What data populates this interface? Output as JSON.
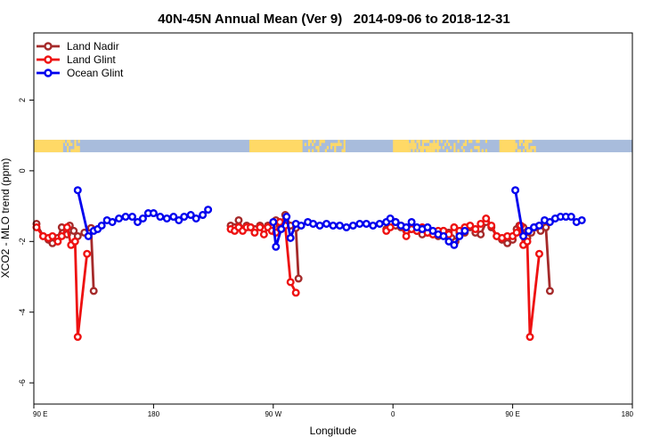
{
  "chart_data": {
    "type": "line",
    "title": "40N-45N Annual Mean (Ver 9)   2014-09-06 to 2018-12-31",
    "xlabel": "Longitude",
    "ylabel": "XCO2 - MLO trend (ppm)",
    "xlim": [
      90,
      540
    ],
    "ylim": [
      -6.6,
      3.9
    ],
    "yticks": [
      2,
      0,
      -2,
      -4,
      -6
    ],
    "ytick_labels": [
      "2",
      "0",
      "-2",
      "-4",
      "-6"
    ],
    "xticks": [
      90,
      180,
      270,
      360,
      450,
      540
    ],
    "xtick_labels": [
      "90 E",
      "180",
      "90 W",
      "0",
      "90 E",
      "180"
    ],
    "legend_position": "top-left",
    "land_ocean_bar": {
      "y_center": 0.7,
      "land_color": "#FFD966",
      "ocean_color": "#A8BCDC"
    },
    "series": [
      {
        "name": "Land Nadir",
        "color": "#A52A2A",
        "segments": [
          [
            [
              92,
              -1.5
            ],
            [
              97,
              -1.85
            ],
            [
              101,
              -1.95
            ],
            [
              104,
              -2.05
            ],
            [
              108,
              -1.9
            ],
            [
              111,
              -1.6
            ],
            [
              115,
              -1.8
            ],
            [
              117,
              -1.55
            ],
            [
              120,
              -1.7
            ],
            [
              123,
              -1.85
            ],
            [
              128,
              -1.75
            ],
            [
              133,
              -1.62
            ],
            [
              135,
              -3.4
            ]
          ],
          [
            [
              238,
              -1.55
            ],
            [
              241,
              -1.6
            ],
            [
              244,
              -1.4
            ],
            [
              247,
              -1.65
            ],
            [
              250,
              -1.55
            ],
            [
              253,
              -1.6
            ],
            [
              256,
              -1.65
            ],
            [
              260,
              -1.55
            ],
            [
              263,
              -1.65
            ],
            [
              266,
              -1.55
            ],
            [
              269,
              -1.6
            ],
            [
              272,
              -1.4
            ],
            [
              275,
              -1.55
            ],
            [
              279,
              -1.25
            ],
            [
              283,
              -1.55
            ],
            [
              287,
              -1.62
            ],
            [
              289,
              -3.05
            ]
          ],
          [
            [
              355,
              -1.65
            ],
            [
              358,
              -1.45
            ],
            [
              362,
              -1.55
            ],
            [
              366,
              -1.6
            ],
            [
              370,
              -1.7
            ],
            [
              374,
              -1.65
            ],
            [
              378,
              -1.7
            ],
            [
              382,
              -1.8
            ],
            [
              386,
              -1.75
            ],
            [
              390,
              -1.8
            ],
            [
              394,
              -1.85
            ],
            [
              398,
              -1.7
            ],
            [
              402,
              -1.75
            ],
            [
              404,
              -1.9
            ],
            [
              407,
              -2.0
            ],
            [
              410,
              -1.75
            ],
            [
              414,
              -1.75
            ],
            [
              418,
              -1.6
            ],
            [
              422,
              -1.75
            ],
            [
              426,
              -1.8
            ],
            [
              430,
              -1.45
            ],
            [
              434,
              -1.6
            ],
            [
              438,
              -1.85
            ],
            [
              442,
              -1.95
            ],
            [
              446,
              -2.05
            ],
            [
              450,
              -1.95
            ],
            [
              453,
              -1.65
            ],
            [
              455,
              -1.55
            ],
            [
              458,
              -1.6
            ],
            [
              461,
              -1.9
            ],
            [
              464,
              -1.75
            ],
            [
              467,
              -1.6
            ],
            [
              471,
              -1.7
            ],
            [
              475,
              -1.6
            ],
            [
              478,
              -3.4
            ]
          ]
        ]
      },
      {
        "name": "Land Glint",
        "color": "#EE1111",
        "segments": [
          [
            [
              92,
              -1.6
            ],
            [
              97,
              -1.85
            ],
            [
              101,
              -1.9
            ],
            [
              104,
              -1.85
            ],
            [
              108,
              -2.0
            ],
            [
              111,
              -1.85
            ],
            [
              115,
              -1.6
            ],
            [
              118,
              -2.1
            ],
            [
              121,
              -2.0
            ],
            [
              123,
              -4.7
            ],
            [
              130,
              -2.35
            ]
          ],
          [
            [
              238,
              -1.65
            ],
            [
              241,
              -1.7
            ],
            [
              244,
              -1.6
            ],
            [
              247,
              -1.7
            ],
            [
              250,
              -1.6
            ],
            [
              253,
              -1.6
            ],
            [
              256,
              -1.75
            ],
            [
              260,
              -1.6
            ],
            [
              263,
              -1.8
            ],
            [
              266,
              -1.6
            ],
            [
              269,
              -1.7
            ],
            [
              272,
              -1.75
            ],
            [
              275,
              -1.45
            ],
            [
              279,
              -1.55
            ],
            [
              283,
              -3.15
            ],
            [
              287,
              -3.45
            ]
          ],
          [
            [
              355,
              -1.7
            ],
            [
              358,
              -1.6
            ],
            [
              362,
              -1.45
            ],
            [
              366,
              -1.55
            ],
            [
              370,
              -1.85
            ],
            [
              374,
              -1.65
            ],
            [
              378,
              -1.7
            ],
            [
              382,
              -1.6
            ],
            [
              386,
              -1.75
            ],
            [
              390,
              -1.8
            ],
            [
              394,
              -1.7
            ],
            [
              398,
              -1.7
            ],
            [
              402,
              -1.8
            ],
            [
              406,
              -1.6
            ],
            [
              410,
              -1.7
            ],
            [
              414,
              -1.6
            ],
            [
              418,
              -1.55
            ],
            [
              422,
              -1.65
            ],
            [
              426,
              -1.5
            ],
            [
              430,
              -1.35
            ],
            [
              434,
              -1.55
            ],
            [
              438,
              -1.85
            ],
            [
              442,
              -1.9
            ],
            [
              446,
              -1.85
            ],
            [
              450,
              -1.85
            ],
            [
              453,
              -1.75
            ],
            [
              456,
              -1.55
            ],
            [
              458,
              -2.1
            ],
            [
              461,
              -2.0
            ],
            [
              463,
              -4.7
            ],
            [
              470,
              -2.35
            ]
          ]
        ]
      },
      {
        "name": "Ocean Glint",
        "color": "#0000EE",
        "segments": [
          [
            [
              123,
              -0.55
            ],
            [
              131,
              -1.85
            ],
            [
              135,
              -1.7
            ],
            [
              138,
              -1.65
            ],
            [
              141,
              -1.55
            ],
            [
              145,
              -1.4
            ],
            [
              149,
              -1.45
            ],
            [
              154,
              -1.35
            ],
            [
              159,
              -1.3
            ],
            [
              164,
              -1.3
            ],
            [
              168,
              -1.45
            ],
            [
              172,
              -1.35
            ],
            [
              176,
              -1.2
            ],
            [
              180,
              -1.2
            ],
            [
              185,
              -1.3
            ],
            [
              190,
              -1.35
            ],
            [
              195,
              -1.3
            ],
            [
              199,
              -1.4
            ],
            [
              203,
              -1.3
            ],
            [
              208,
              -1.25
            ],
            [
              212,
              -1.35
            ],
            [
              217,
              -1.25
            ],
            [
              221,
              -1.1
            ]
          ],
          [
            [
              270,
              -1.45
            ],
            [
              272,
              -2.15
            ],
            [
              276,
              -1.65
            ],
            [
              280,
              -1.3
            ],
            [
              283,
              -1.9
            ],
            [
              287,
              -1.5
            ],
            [
              291,
              -1.55
            ],
            [
              296,
              -1.45
            ],
            [
              300,
              -1.5
            ],
            [
              305,
              -1.55
            ],
            [
              310,
              -1.5
            ],
            [
              315,
              -1.55
            ],
            [
              320,
              -1.55
            ],
            [
              325,
              -1.6
            ],
            [
              330,
              -1.55
            ],
            [
              335,
              -1.5
            ],
            [
              340,
              -1.5
            ],
            [
              345,
              -1.55
            ],
            [
              350,
              -1.5
            ],
            [
              355,
              -1.45
            ],
            [
              358,
              -1.35
            ],
            [
              362,
              -1.45
            ],
            [
              366,
              -1.55
            ],
            [
              370,
              -1.6
            ],
            [
              374,
              -1.45
            ],
            [
              378,
              -1.6
            ],
            [
              382,
              -1.65
            ],
            [
              386,
              -1.6
            ],
            [
              390,
              -1.7
            ],
            [
              394,
              -1.8
            ],
            [
              398,
              -1.85
            ],
            [
              402,
              -2.0
            ],
            [
              406,
              -2.1
            ],
            [
              410,
              -1.85
            ],
            [
              414,
              -1.7
            ]
          ],
          [
            [
              452,
              -0.55
            ],
            [
              458,
              -1.85
            ],
            [
              462,
              -1.7
            ],
            [
              466,
              -1.6
            ],
            [
              470,
              -1.55
            ],
            [
              474,
              -1.4
            ],
            [
              478,
              -1.45
            ],
            [
              482,
              -1.35
            ],
            [
              486,
              -1.3
            ],
            [
              490,
              -1.3
            ],
            [
              494,
              -1.3
            ],
            [
              498,
              -1.45
            ],
            [
              502,
              -1.4
            ]
          ]
        ]
      }
    ]
  }
}
